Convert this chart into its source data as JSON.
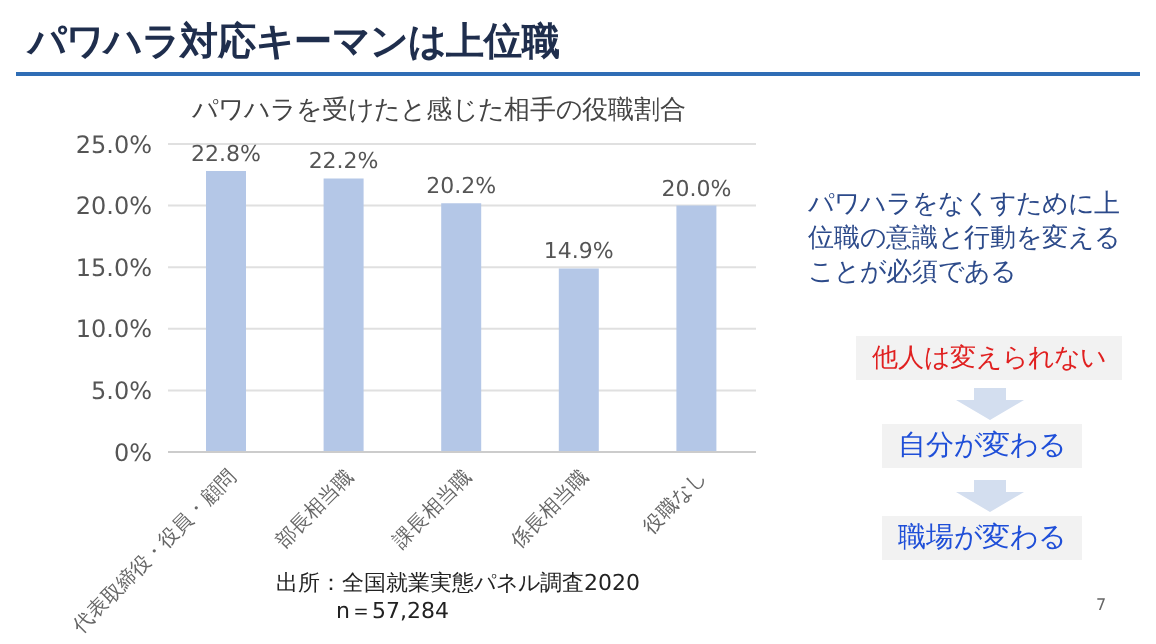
{
  "chart_data": {
    "type": "bar",
    "title": "パワハラ対応キーマンは上位職",
    "subtitle": "パワハラを受けたと感じた相手の役職割合",
    "categories": [
      "代表取締役・役員・顧問",
      "部長相当職",
      "課長相当職",
      "係長相当職",
      "役職なし"
    ],
    "values": [
      22.8,
      22.2,
      20.2,
      14.9,
      20.0
    ],
    "color": "#b4c7e7",
    "value_labels": [
      "22.8%",
      "22.2%",
      "20.2%",
      "14.9%",
      "20.0%"
    ],
    "ylim": [
      0,
      25
    ],
    "yticks": [
      {
        "value": 0,
        "label": "0%"
      },
      {
        "value": 5,
        "label": "5.0%"
      },
      {
        "value": 10,
        "label": "10.0%"
      },
      {
        "value": 15,
        "label": "15.0%"
      },
      {
        "value": 20,
        "label": "20.0%"
      },
      {
        "value": 25,
        "label": "25.0%"
      }
    ],
    "grid": "y",
    "legend": false,
    "annotations": [
      "パワハラをなくすために上位職の意識と行動を変えることが必須である",
      "他人は変えられない",
      "自分が変わる",
      "職場が変わる",
      "出所：全国就業実態パネル調査2020",
      "n＝57,284",
      "7"
    ]
  }
}
